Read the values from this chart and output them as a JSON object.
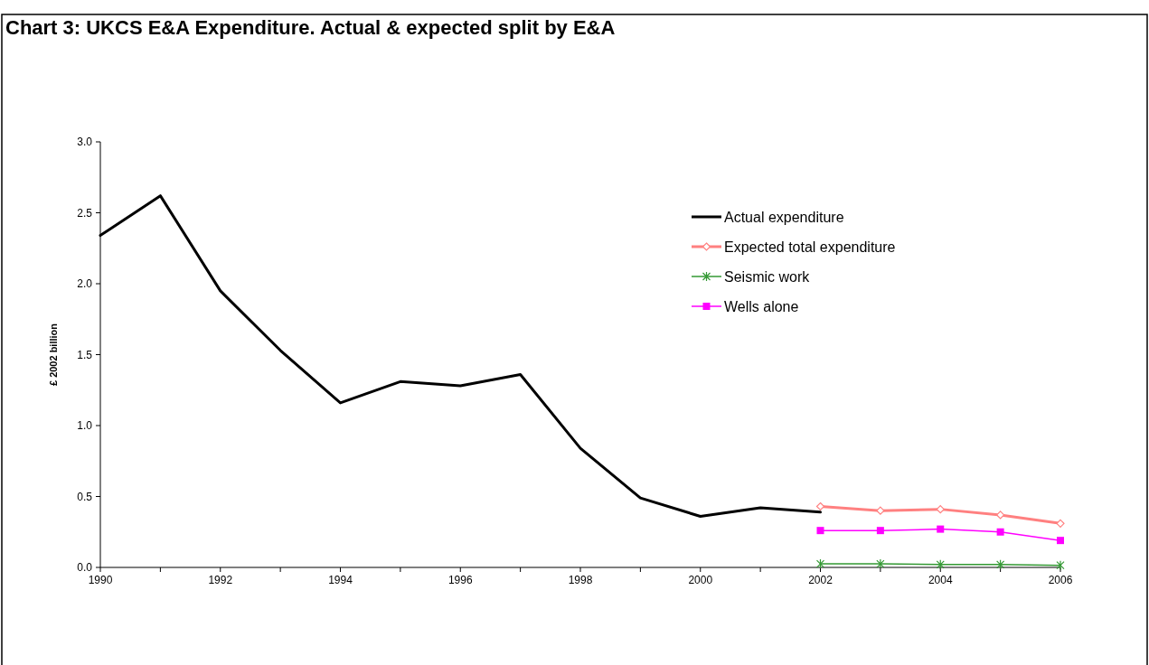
{
  "chart_data": {
    "type": "line",
    "title": "Chart 3: UKCS E&A Expenditure. Actual & expected split by E&A",
    "ylabel": "£ 2002 billion",
    "x": [
      1990,
      1991,
      1992,
      1993,
      1994,
      1995,
      1996,
      1997,
      1998,
      1999,
      2000,
      2001,
      2002
    ],
    "series": [
      {
        "name": "Actual expenditure",
        "color": "#000000",
        "marker": "none",
        "values": [
          2.34,
          2.62,
          1.95,
          1.53,
          1.16,
          1.31,
          1.28,
          1.36,
          0.84,
          0.49,
          0.36,
          0.42,
          0.39
        ]
      },
      {
        "name": "Expected total expenditure",
        "color": "#ff8080",
        "marker": "diamond",
        "x": [
          2002,
          2003,
          2004,
          2005,
          2006
        ],
        "values": [
          0.43,
          0.4,
          0.41,
          0.37,
          0.31
        ]
      },
      {
        "name": "Seismic work",
        "color": "#339933",
        "marker": "cross",
        "x": [
          2002,
          2003,
          2004,
          2005,
          2006
        ],
        "values": [
          0.025,
          0.025,
          0.02,
          0.02,
          0.015
        ]
      },
      {
        "name": "Wells alone",
        "color": "#ff00ff",
        "marker": "square",
        "x": [
          2002,
          2003,
          2004,
          2005,
          2006
        ],
        "values": [
          0.26,
          0.26,
          0.27,
          0.25,
          0.19
        ]
      }
    ],
    "xlim": [
      1990,
      2006
    ],
    "xticks": [
      1990,
      {
        "value": 1991,
        "label": null
      },
      1992,
      {
        "value": 1993,
        "label": null
      },
      1994,
      {
        "value": 1995,
        "label": null
      },
      1996,
      {
        "value": 1997,
        "label": null
      },
      1998,
      {
        "value": 1999,
        "label": null
      },
      2000,
      {
        "value": 2001,
        "label": null
      },
      2002,
      {
        "value": 2003,
        "label": null
      },
      2004,
      {
        "value": 2005,
        "label": null
      },
      2006
    ],
    "ylim": [
      0,
      3
    ],
    "yticks": [
      {
        "value": 0,
        "label": "0.0"
      },
      0.5,
      {
        "value": 1,
        "label": "1.0"
      },
      1.5,
      {
        "value": 2,
        "label": "2.0"
      },
      2.5,
      {
        "value": 3,
        "label": "3.0"
      }
    ],
    "legend": "top right",
    "grid": false
  }
}
